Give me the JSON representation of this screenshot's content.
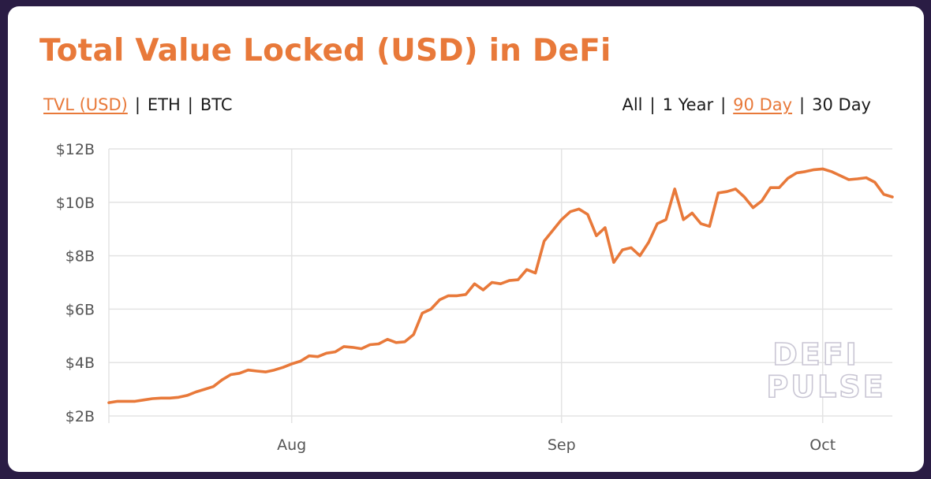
{
  "title": "Total Value Locked (USD) in DeFi",
  "metric_toggles": [
    {
      "label": "TVL (USD)",
      "active": true
    },
    {
      "label": "ETH",
      "active": false
    },
    {
      "label": "BTC",
      "active": false
    }
  ],
  "range_toggles": [
    {
      "label": "All",
      "active": false
    },
    {
      "label": "1 Year",
      "active": false
    },
    {
      "label": "90 Day",
      "active": true
    },
    {
      "label": "30 Day",
      "active": false
    }
  ],
  "separator": "|",
  "watermark": {
    "line1": "DEFI",
    "line2": "PULSE"
  },
  "colors": {
    "accent": "#e8793a",
    "background": "#2a1c44",
    "card": "#ffffff",
    "grid": "#e3e3e3"
  },
  "chart_data": {
    "type": "line",
    "title": "Total Value Locked (USD) in DeFi",
    "xlabel": "",
    "ylabel": "",
    "grid": true,
    "legend": "none",
    "ylim": [
      2,
      12
    ],
    "y_ticks": [
      {
        "value": 2,
        "label": "$2B"
      },
      {
        "value": 4,
        "label": "$4B"
      },
      {
        "value": 6,
        "label": "$6B"
      },
      {
        "value": 8,
        "label": "$8B"
      },
      {
        "value": 10,
        "label": "$10B"
      },
      {
        "value": 12,
        "label": "$12B"
      }
    ],
    "x_start": "2020-07-11",
    "x_end": "2020-10-09",
    "x_ticks": [
      {
        "value": "2020-08-01",
        "label": "Aug"
      },
      {
        "value": "2020-09-01",
        "label": "Sep"
      },
      {
        "value": "2020-10-01",
        "label": "Oct"
      }
    ],
    "series": [
      {
        "values": [
          {
            "date": "2020-07-11",
            "value": 2.5
          },
          {
            "date": "2020-07-12",
            "value": 2.55
          },
          {
            "date": "2020-07-13",
            "value": 2.55
          },
          {
            "date": "2020-07-14",
            "value": 2.55
          },
          {
            "date": "2020-07-15",
            "value": 2.6
          },
          {
            "date": "2020-07-16",
            "value": 2.65
          },
          {
            "date": "2020-07-17",
            "value": 2.67
          },
          {
            "date": "2020-07-18",
            "value": 2.67
          },
          {
            "date": "2020-07-19",
            "value": 2.7
          },
          {
            "date": "2020-07-20",
            "value": 2.77
          },
          {
            "date": "2020-07-21",
            "value": 2.9
          },
          {
            "date": "2020-07-22",
            "value": 3.0
          },
          {
            "date": "2020-07-23",
            "value": 3.1
          },
          {
            "date": "2020-07-24",
            "value": 3.35
          },
          {
            "date": "2020-07-25",
            "value": 3.55
          },
          {
            "date": "2020-07-26",
            "value": 3.6
          },
          {
            "date": "2020-07-27",
            "value": 3.72
          },
          {
            "date": "2020-07-28",
            "value": 3.68
          },
          {
            "date": "2020-07-29",
            "value": 3.65
          },
          {
            "date": "2020-07-30",
            "value": 3.72
          },
          {
            "date": "2020-07-31",
            "value": 3.82
          },
          {
            "date": "2020-08-01",
            "value": 3.95
          },
          {
            "date": "2020-08-02",
            "value": 4.05
          },
          {
            "date": "2020-08-03",
            "value": 4.25
          },
          {
            "date": "2020-08-04",
            "value": 4.22
          },
          {
            "date": "2020-08-05",
            "value": 4.35
          },
          {
            "date": "2020-08-06",
            "value": 4.4
          },
          {
            "date": "2020-08-07",
            "value": 4.6
          },
          {
            "date": "2020-08-08",
            "value": 4.57
          },
          {
            "date": "2020-08-09",
            "value": 4.52
          },
          {
            "date": "2020-08-10",
            "value": 4.67
          },
          {
            "date": "2020-08-11",
            "value": 4.7
          },
          {
            "date": "2020-08-12",
            "value": 4.87
          },
          {
            "date": "2020-08-13",
            "value": 4.75
          },
          {
            "date": "2020-08-14",
            "value": 4.78
          },
          {
            "date": "2020-08-15",
            "value": 5.05
          },
          {
            "date": "2020-08-16",
            "value": 5.85
          },
          {
            "date": "2020-08-17",
            "value": 6.0
          },
          {
            "date": "2020-08-18",
            "value": 6.35
          },
          {
            "date": "2020-08-19",
            "value": 6.5
          },
          {
            "date": "2020-08-20",
            "value": 6.5
          },
          {
            "date": "2020-08-21",
            "value": 6.55
          },
          {
            "date": "2020-08-22",
            "value": 6.95
          },
          {
            "date": "2020-08-23",
            "value": 6.72
          },
          {
            "date": "2020-08-24",
            "value": 7.0
          },
          {
            "date": "2020-08-25",
            "value": 6.95
          },
          {
            "date": "2020-08-26",
            "value": 7.07
          },
          {
            "date": "2020-08-27",
            "value": 7.1
          },
          {
            "date": "2020-08-28",
            "value": 7.48
          },
          {
            "date": "2020-08-29",
            "value": 7.35
          },
          {
            "date": "2020-08-30",
            "value": 8.55
          },
          {
            "date": "2020-08-31",
            "value": 8.95
          },
          {
            "date": "2020-09-01",
            "value": 9.35
          },
          {
            "date": "2020-09-02",
            "value": 9.65
          },
          {
            "date": "2020-09-03",
            "value": 9.75
          },
          {
            "date": "2020-09-04",
            "value": 9.55
          },
          {
            "date": "2020-09-05",
            "value": 8.75
          },
          {
            "date": "2020-09-06",
            "value": 9.05
          },
          {
            "date": "2020-09-07",
            "value": 7.75
          },
          {
            "date": "2020-09-08",
            "value": 8.22
          },
          {
            "date": "2020-09-09",
            "value": 8.3
          },
          {
            "date": "2020-09-10",
            "value": 8.0
          },
          {
            "date": "2020-09-11",
            "value": 8.5
          },
          {
            "date": "2020-09-12",
            "value": 9.2
          },
          {
            "date": "2020-09-13",
            "value": 9.35
          },
          {
            "date": "2020-09-14",
            "value": 10.5
          },
          {
            "date": "2020-09-15",
            "value": 9.35
          },
          {
            "date": "2020-09-16",
            "value": 9.6
          },
          {
            "date": "2020-09-17",
            "value": 9.2
          },
          {
            "date": "2020-09-18",
            "value": 9.1
          },
          {
            "date": "2020-09-19",
            "value": 10.35
          },
          {
            "date": "2020-09-20",
            "value": 10.4
          },
          {
            "date": "2020-09-21",
            "value": 10.5
          },
          {
            "date": "2020-09-22",
            "value": 10.2
          },
          {
            "date": "2020-09-23",
            "value": 9.8
          },
          {
            "date": "2020-09-24",
            "value": 10.05
          },
          {
            "date": "2020-09-25",
            "value": 10.55
          },
          {
            "date": "2020-09-26",
            "value": 10.55
          },
          {
            "date": "2020-09-27",
            "value": 10.9
          },
          {
            "date": "2020-09-28",
            "value": 11.1
          },
          {
            "date": "2020-09-29",
            "value": 11.15
          },
          {
            "date": "2020-09-30",
            "value": 11.22
          },
          {
            "date": "2020-10-01",
            "value": 11.25
          },
          {
            "date": "2020-10-02",
            "value": 11.15
          },
          {
            "date": "2020-10-03",
            "value": 11.0
          },
          {
            "date": "2020-10-04",
            "value": 10.85
          },
          {
            "date": "2020-10-05",
            "value": 10.88
          },
          {
            "date": "2020-10-06",
            "value": 10.92
          },
          {
            "date": "2020-10-07",
            "value": 10.75
          },
          {
            "date": "2020-10-08",
            "value": 10.3
          },
          {
            "date": "2020-10-09",
            "value": 10.2
          }
        ]
      }
    ]
  }
}
